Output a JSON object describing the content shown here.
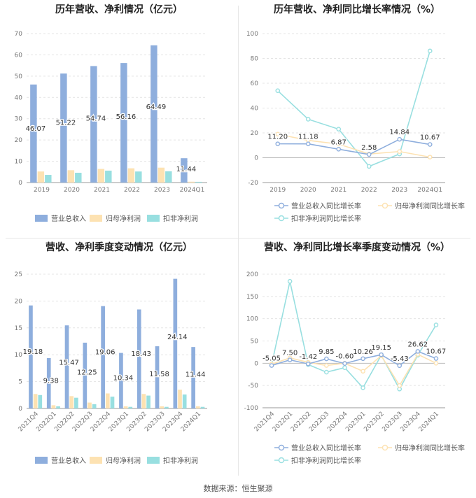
{
  "source": "数据来源：恒生聚源",
  "chart_data": [
    {
      "type": "bar",
      "title": "历年营收、净利情况（亿元）",
      "categories": [
        "2019",
        "2020",
        "2021",
        "2022",
        "2023",
        "2024Q1"
      ],
      "ylim": [
        0,
        70
      ],
      "yticks": [
        0,
        10,
        20,
        30,
        40,
        50,
        60,
        70
      ],
      "series": [
        {
          "name": "营业总收入",
          "color": "#8eaedd",
          "values": [
            46.07,
            51.22,
            54.74,
            56.16,
            64.49,
            11.44
          ]
        },
        {
          "name": "归母净利润",
          "color": "#fde2b2",
          "values": [
            5.2,
            5.8,
            6.4,
            6.7,
            7.0,
            0.4
          ]
        },
        {
          "name": "扣非净利润",
          "color": "#98dfe0",
          "values": [
            3.6,
            4.6,
            5.6,
            5.2,
            5.3,
            0.35
          ]
        }
      ],
      "labels": [
        "46.07",
        "51.22",
        "54.74",
        "56.16",
        "64.49",
        "11.44"
      ]
    },
    {
      "type": "line",
      "title": "历年营收、净利同比增长率情况（%）",
      "categories": [
        "2019",
        "2020",
        "2021",
        "2022",
        "2023",
        "2024Q1"
      ],
      "ylim": [
        -20,
        100
      ],
      "yticks": [
        -20,
        0,
        20,
        40,
        60,
        80,
        100
      ],
      "series": [
        {
          "name": "营业总收入同比增长率",
          "color": "#8eaedd",
          "values": [
            11.2,
            11.18,
            6.87,
            2.58,
            14.84,
            10.67
          ]
        },
        {
          "name": "归母净利润同比增长率",
          "color": "#fde2b2",
          "values": [
            19.0,
            14.0,
            11.0,
            3.0,
            5.0,
            0.5
          ]
        },
        {
          "name": "扣非净利润同比增长率",
          "color": "#98dfe0",
          "values": [
            54.0,
            31.0,
            23.0,
            -7.0,
            3.0,
            86.0
          ]
        }
      ],
      "labels": [
        "11.20",
        "11.18",
        "6.87",
        "2.58",
        "14.84",
        "10.67"
      ]
    },
    {
      "type": "bar",
      "title": "营收、净利季度变动情况（亿元）",
      "categories": [
        "2021Q4",
        "2022Q1",
        "2022Q2",
        "2022Q3",
        "2022Q4",
        "2023Q1",
        "2023Q2",
        "2023Q3",
        "2023Q4",
        "2024Q1"
      ],
      "ylim": [
        0,
        25
      ],
      "yticks": [
        0,
        5,
        10,
        15,
        20,
        25
      ],
      "series": [
        {
          "name": "营业总收入",
          "color": "#8eaedd",
          "values": [
            19.18,
            9.38,
            15.47,
            12.25,
            19.06,
            10.34,
            18.43,
            11.58,
            24.14,
            11.44
          ]
        },
        {
          "name": "归母净利润",
          "color": "#fde2b2",
          "values": [
            2.7,
            0.6,
            2.3,
            1.1,
            2.8,
            0.4,
            2.7,
            0.4,
            3.5,
            0.4
          ]
        },
        {
          "name": "扣非净利润",
          "color": "#98dfe0",
          "values": [
            2.5,
            0.4,
            2.0,
            0.8,
            2.2,
            0.3,
            2.4,
            0.3,
            2.6,
            0.3
          ]
        }
      ],
      "labels": [
        "19.18",
        "9.38",
        "15.47",
        "12.25",
        "19.06",
        "10.34",
        "18.43",
        "11.58",
        "24.14",
        "11.44"
      ]
    },
    {
      "type": "line",
      "title": "营收、净利同比增长率季度变动情况（%）",
      "categories": [
        "2021Q4",
        "2022Q1",
        "2022Q2",
        "2022Q3",
        "2022Q4",
        "2023Q1",
        "2023Q2",
        "2023Q3",
        "2023Q4",
        "2024Q1"
      ],
      "ylim": [
        -100,
        200
      ],
      "yticks": [
        -100,
        -50,
        0,
        50,
        100,
        150,
        200
      ],
      "series": [
        {
          "name": "营业总收入同比增长率",
          "color": "#8eaedd",
          "values": [
            -5.05,
            7.5,
            -1.42,
            9.85,
            -0.6,
            10.26,
            19.15,
            -5.43,
            26.62,
            10.67
          ]
        },
        {
          "name": "归母净利润同比增长率",
          "color": "#fde2b2",
          "values": [
            -2,
            12,
            2,
            -5,
            0,
            -18,
            17,
            -50,
            20,
            0
          ]
        },
        {
          "name": "扣非净利润同比增长率",
          "color": "#98dfe0",
          "values": [
            -3,
            184,
            -3,
            -20,
            -10,
            -55,
            18,
            -58,
            18,
            86
          ]
        }
      ],
      "labels": [
        "-5.05",
        "7.50",
        "-1.42",
        "9.85",
        "-0.60",
        "10.26",
        "19.15",
        "-5.43",
        "26.62",
        "10.67"
      ]
    }
  ]
}
